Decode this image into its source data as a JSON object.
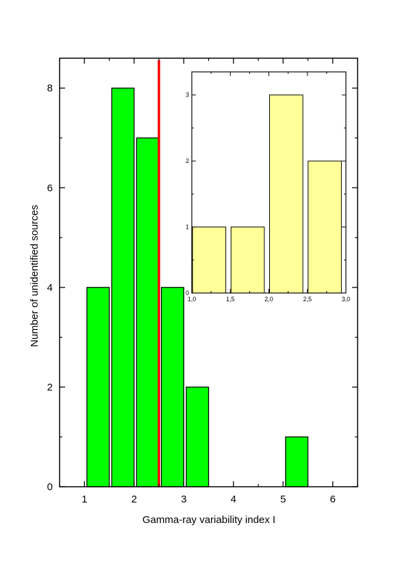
{
  "chart_data": [
    {
      "type": "bar",
      "xlabel": "Gamma-ray variability index I",
      "ylabel": "Number of unidentified sources",
      "xlim": [
        0.5,
        6.5
      ],
      "ylim": [
        0,
        8.6
      ],
      "xticks": [
        1,
        2,
        3,
        4,
        5,
        6
      ],
      "xtick_labels": [
        "1",
        "2",
        "3",
        "4",
        "5",
        "6"
      ],
      "yticks": [
        0,
        2,
        4,
        6,
        8
      ],
      "ytick_labels": [
        "0",
        "2",
        "4",
        "6",
        "8"
      ],
      "bar_color": "#00ff00",
      "bins": [
        {
          "x0": 1.05,
          "x1": 1.5,
          "value": 4
        },
        {
          "x0": 1.55,
          "x1": 2.0,
          "value": 8
        },
        {
          "x0": 2.05,
          "x1": 2.5,
          "value": 7
        },
        {
          "x0": 2.55,
          "x1": 3.0,
          "value": 4
        },
        {
          "x0": 3.05,
          "x1": 3.5,
          "value": 2
        },
        {
          "x0": 5.05,
          "x1": 5.5,
          "value": 1
        }
      ],
      "threshold_line": {
        "x": 2.5,
        "color": "#ff0000"
      },
      "grid": false
    },
    {
      "type": "bar",
      "inset": true,
      "xlim": [
        1.0,
        3.0
      ],
      "ylim": [
        0,
        3.35
      ],
      "xticks": [
        1.0,
        1.5,
        2.0,
        2.5,
        3.0
      ],
      "xtick_labels": [
        "1,0",
        "1,5",
        "2,0",
        "2,5",
        "3,0"
      ],
      "yticks": [
        0,
        1,
        2,
        3
      ],
      "ytick_labels": [
        "0",
        "1",
        "2",
        "3"
      ],
      "bar_color": "#ffff99",
      "bins": [
        {
          "x0": 1.0,
          "x1": 1.45,
          "value": 1
        },
        {
          "x0": 1.5,
          "x1": 1.95,
          "value": 1
        },
        {
          "x0": 2.0,
          "x1": 2.45,
          "value": 3
        },
        {
          "x0": 2.5,
          "x1": 2.95,
          "value": 2
        }
      ],
      "grid": false
    }
  ]
}
